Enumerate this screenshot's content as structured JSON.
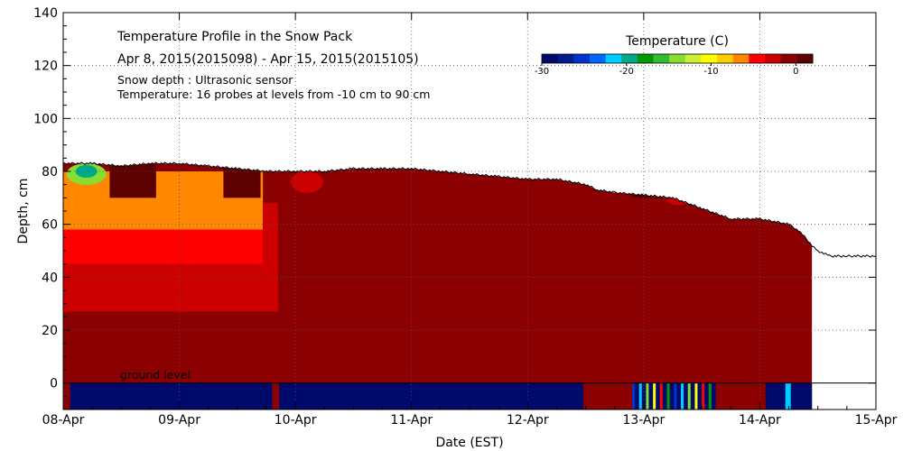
{
  "chart_data": {
    "type": "heatmap",
    "title": "Temperature Profile in the Snow Pack",
    "subtitle": "Apr  8, 2015(2015098) - Apr 15, 2015(2015105)",
    "notes": [
      "Snow depth : Ultrasonic sensor",
      "Temperature: 16 probes at levels from -10 cm to 90 cm"
    ],
    "xlabel": "Date (EST)",
    "ylabel": "Depth, cm",
    "x_ticks": [
      "08-Apr",
      "09-Apr",
      "10-Apr",
      "11-Apr",
      "12-Apr",
      "13-Apr",
      "14-Apr",
      "15-Apr"
    ],
    "y_ticks": [
      0,
      20,
      40,
      60,
      80,
      100,
      120,
      140
    ],
    "xlim_days": [
      0,
      7
    ],
    "ylim": [
      -10,
      140
    ],
    "ground_label": "ground level",
    "grid": true,
    "colorbar": {
      "title": "Temperature (C)",
      "placement": "top-right",
      "tick_labels": [
        "-30",
        "-20",
        "-10",
        "0"
      ],
      "tick_values": [
        -30,
        -20,
        -10,
        0
      ],
      "range": [
        -30,
        2
      ],
      "colors": [
        "#000a6b",
        "#001a8c",
        "#0033cc",
        "#0066ff",
        "#00ccff",
        "#00aa88",
        "#009900",
        "#33bb33",
        "#88dd33",
        "#ccee33",
        "#ffff00",
        "#ffcc00",
        "#ff8800",
        "#ff0000",
        "#cc0000",
        "#8b0000",
        "#5c0000"
      ]
    },
    "snow_depth_series": {
      "name": "Snow depth",
      "x_days": [
        0,
        0.25,
        0.5,
        0.75,
        1.0,
        1.25,
        1.5,
        1.75,
        2.0,
        2.25,
        2.5,
        2.75,
        3.0,
        3.25,
        3.5,
        3.75,
        4.0,
        4.25,
        4.5,
        4.6,
        4.75,
        5.0,
        5.25,
        5.5,
        5.75,
        6.0,
        6.25,
        6.35,
        6.45,
        6.5,
        6.6,
        6.75,
        7.0
      ],
      "y_cm": [
        83,
        83,
        82,
        83,
        83,
        82,
        81,
        80,
        80,
        80,
        81,
        81,
        81,
        80,
        79,
        78,
        77,
        77,
        75,
        73,
        72,
        71,
        70,
        66,
        62,
        62,
        60,
        57,
        52,
        50,
        48,
        48,
        48
      ]
    },
    "temperature_regions_C": [
      {
        "zone": "base layer 0-25 cm",
        "value": -0.5
      },
      {
        "zone": "upper pack 08-Apr to 10-Apr",
        "value": -6
      },
      {
        "zone": "surface cold spot 08-Apr",
        "value": -20
      },
      {
        "zone": "pack 10-Apr to 14-Apr",
        "value": -0.3
      },
      {
        "zone": "ground level -10 to 0 cm",
        "value": -30
      }
    ]
  }
}
